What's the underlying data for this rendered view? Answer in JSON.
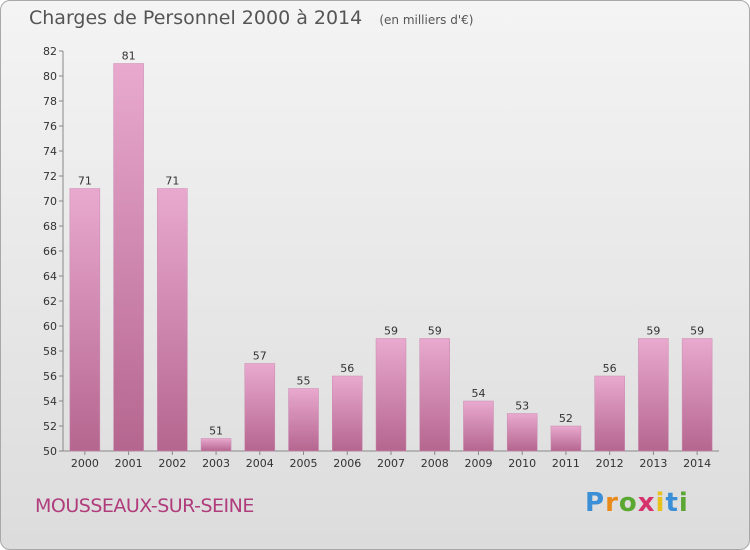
{
  "title": "Charges de Personnel 2000 à 2014",
  "unit": "(en milliers d'€)",
  "city": "MOUSSEAUX-SUR-SEINE",
  "logo": "Proxiti",
  "colors": {
    "bar_top": "#e9a9cf",
    "bar_bottom": "#b5668f",
    "city": "#b03c7c"
  },
  "chart_data": {
    "type": "bar",
    "categories": [
      "2000",
      "2001",
      "2002",
      "2003",
      "2004",
      "2005",
      "2006",
      "2007",
      "2008",
      "2009",
      "2010",
      "2011",
      "2012",
      "2013",
      "2014"
    ],
    "values": [
      71,
      81,
      71,
      51,
      57,
      55,
      56,
      59,
      59,
      54,
      53,
      52,
      56,
      59,
      59
    ],
    "ylim": [
      50,
      82
    ],
    "yticks": [
      50,
      52,
      54,
      56,
      58,
      60,
      62,
      64,
      66,
      68,
      70,
      72,
      74,
      76,
      78,
      80,
      82
    ],
    "grid": false,
    "legend": "none"
  }
}
